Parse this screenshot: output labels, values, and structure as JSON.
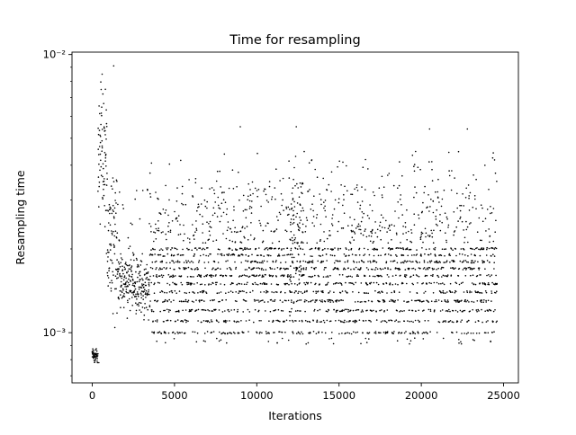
{
  "chart_data": {
    "type": "scatter",
    "title": "Time for resampling",
    "xlabel": "Iterations",
    "ylabel": "Resampling time",
    "y_scale": "log",
    "xlim": [
      -1230,
      25900
    ],
    "ylim": [
      0.00066,
      0.0102
    ],
    "x_ticks": [
      0,
      5000,
      10000,
      15000,
      20000,
      25000
    ],
    "x_tick_labels": [
      "0",
      "5000",
      "10000",
      "15000",
      "20000",
      "25000"
    ],
    "y_ticks": [
      0.001,
      0.01
    ],
    "y_tick_labels": [
      "10⁻³",
      "10⁻²"
    ],
    "marker": "dot",
    "marker_color": "#000000",
    "grid": false,
    "legend": "none",
    "iterations_range": [
      0,
      24600
    ],
    "series": [
      {
        "description_points": [
          {
            "x": 0,
            "y": 0.00085
          },
          {
            "x": 100,
            "y": 0.00082
          },
          {
            "x": 200,
            "y": 0.0008
          },
          {
            "x": 400,
            "y": 0.00078
          },
          {
            "x": 600,
            "y": 0.0085
          },
          {
            "x": 800,
            "y": 0.0075
          },
          {
            "x": 1300,
            "y": 0.0091
          },
          {
            "x": 1500,
            "y": 0.0035
          },
          {
            "x": 2500,
            "y": 0.0014
          },
          {
            "x": 5000,
            "y": 0.0015
          },
          {
            "x": 9000,
            "y": 0.0055
          },
          {
            "x": 12400,
            "y": 0.0055
          },
          {
            "x": 15000,
            "y": 0.0013
          },
          {
            "x": 20500,
            "y": 0.0054
          },
          {
            "x": 22800,
            "y": 0.0054
          },
          {
            "x": 24600,
            "y": 0.0011
          }
        ],
        "band_levels": [
          0.001,
          0.0011,
          0.0012,
          0.0013,
          0.0014,
          0.0015,
          0.0016,
          0.0017,
          0.0018,
          0.0019,
          0.002
        ]
      }
    ]
  }
}
